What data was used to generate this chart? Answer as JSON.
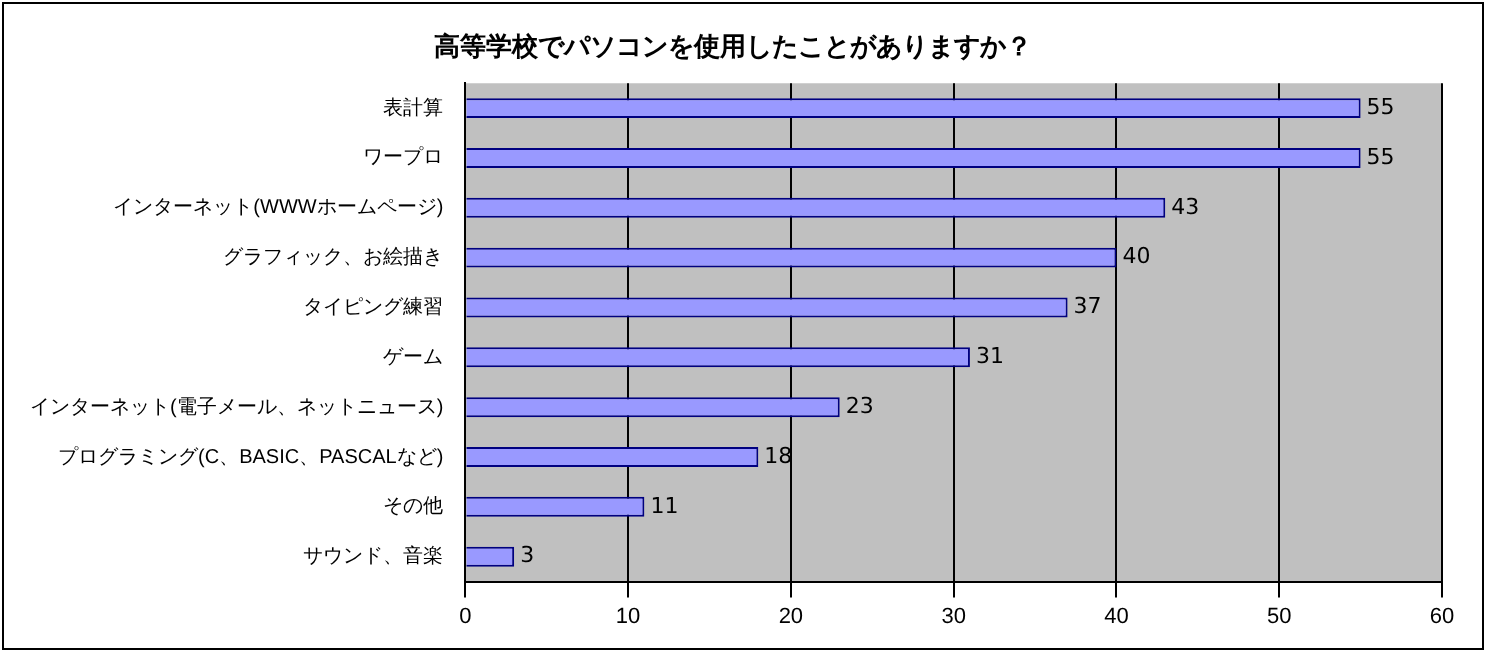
{
  "chart_data": {
    "type": "bar",
    "orientation": "horizontal",
    "title": "高等学校でパソコンを使用したことがありますか？",
    "categories": [
      "表計算",
      "ワープロ",
      "インターネット(WWWホームページ)",
      "グラフィック、お絵描き",
      "タイピング練習",
      "ゲーム",
      "インターネット(電子メール、ネットニュース)",
      "プログラミング(C、BASIC、PASCALなど)",
      "その他",
      "サウンド、音楽"
    ],
    "values": [
      55,
      55,
      43,
      40,
      37,
      31,
      23,
      18,
      11,
      3
    ],
    "color": "#9999ff",
    "xlim": [
      0,
      60
    ],
    "xticks": [
      0,
      10,
      20,
      30,
      40,
      50,
      60
    ],
    "grid": "x",
    "data_labels": true
  }
}
